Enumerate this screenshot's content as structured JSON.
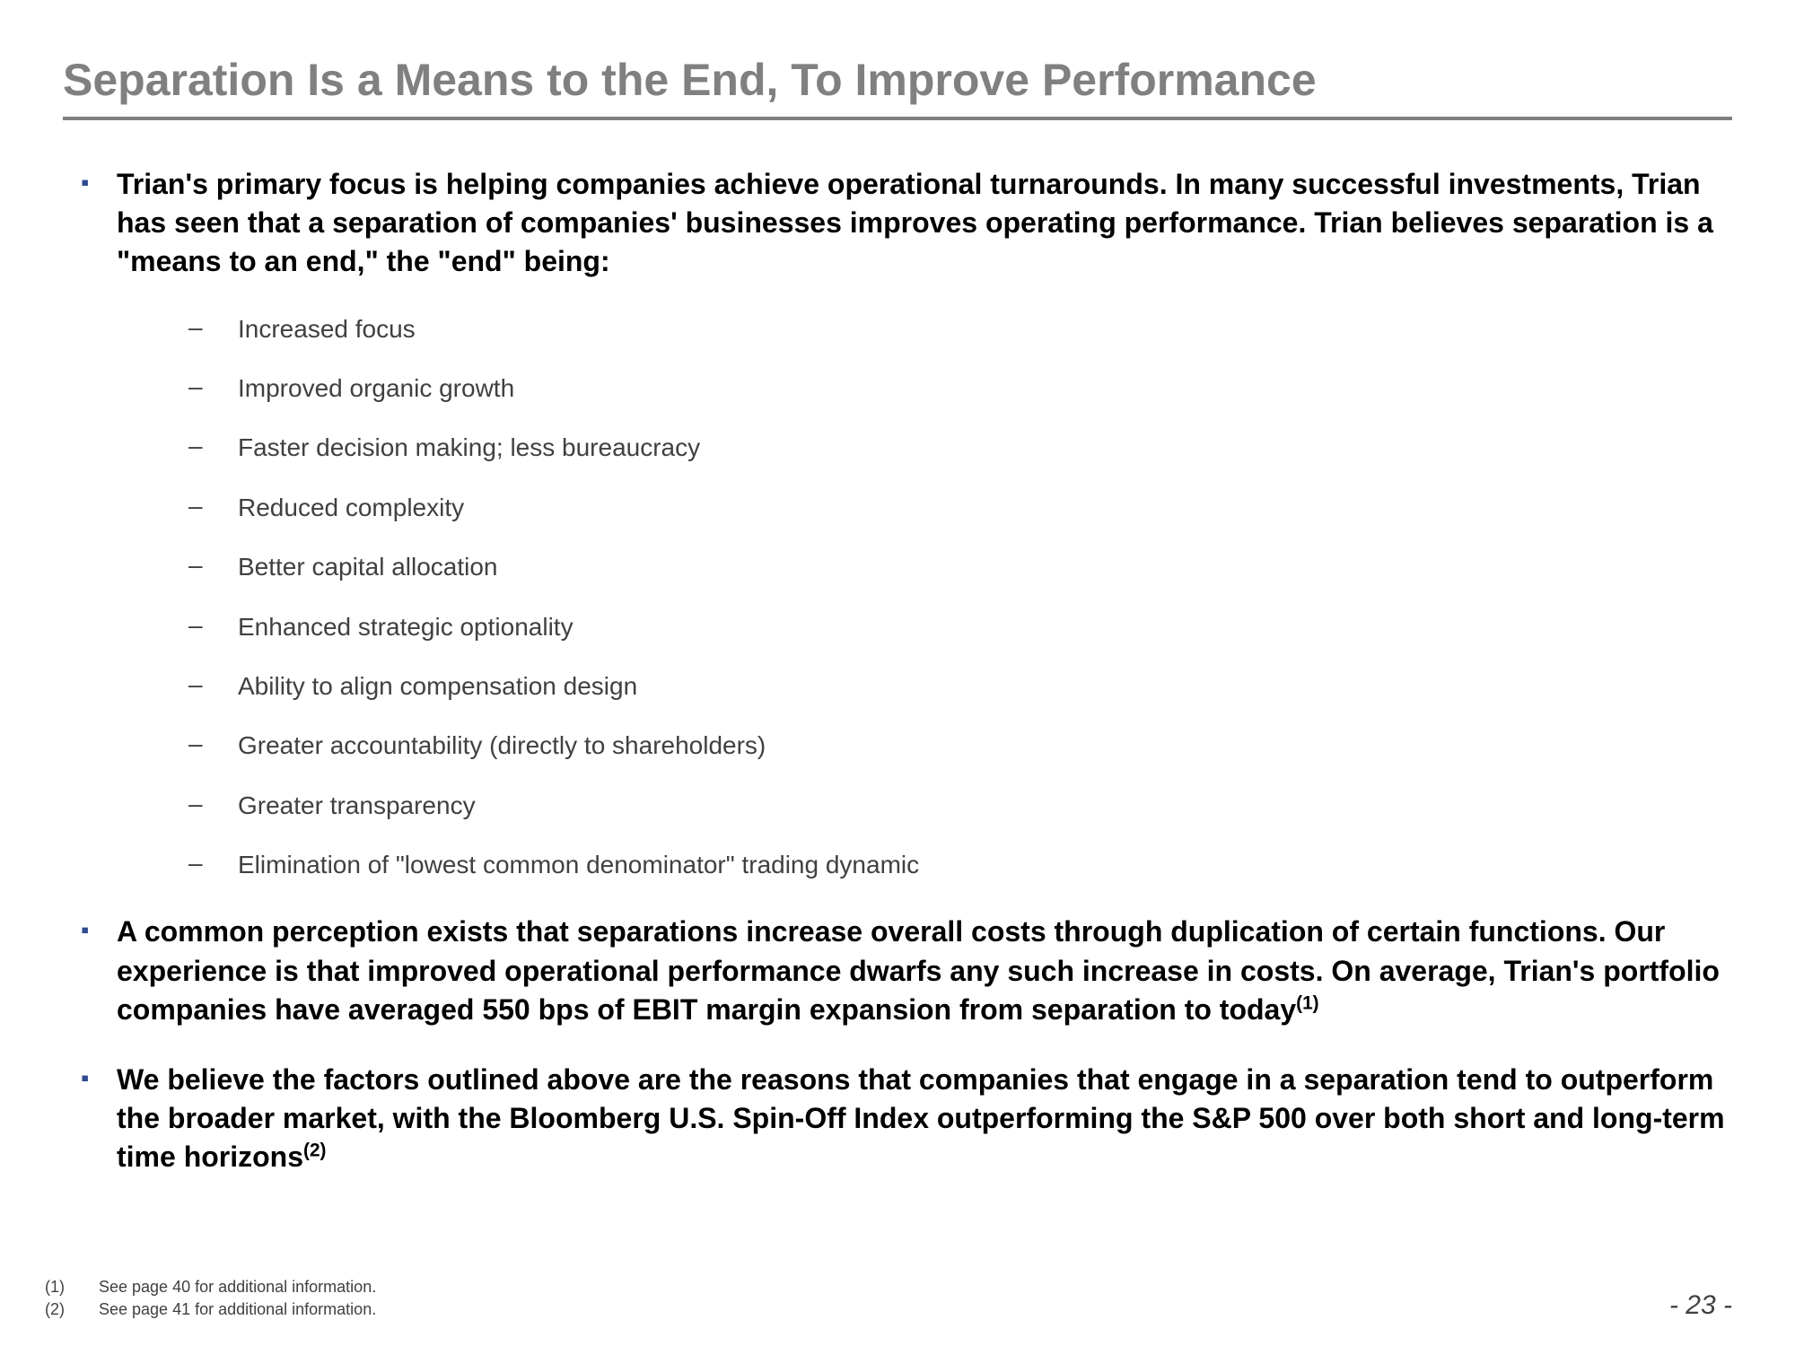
{
  "title": "Separation Is a Means to the End, To Improve Performance",
  "colors": {
    "title_gray": "#808080",
    "bullet_blue": "#2e4b8f",
    "body_black": "#000000",
    "sub_gray": "#404040",
    "background": "#ffffff"
  },
  "typography": {
    "title_fontsize": 50,
    "main_fontsize": 32,
    "sub_fontsize": 28,
    "footnote_fontsize": 18,
    "pagenum_fontsize": 30
  },
  "bullets": {
    "b1": {
      "text": "Trian's primary focus is helping companies achieve operational turnarounds.  In many successful investments, Trian has seen that a separation of companies' businesses improves operating performance.  Trian believes separation is a \"means to an end,\" the \"end\" being:",
      "subs": {
        "s0": "Increased focus",
        "s1": "Improved organic growth",
        "s2": "Faster decision making; less bureaucracy",
        "s3": "Reduced complexity",
        "s4": "Better capital allocation",
        "s5": "Enhanced strategic optionality",
        "s6": "Ability to align compensation design",
        "s7": "Greater accountability (directly to shareholders)",
        "s8": "Greater transparency",
        "s9": "Elimination of \"lowest common denominator\" trading dynamic"
      }
    },
    "b2": {
      "text_pre": "A common perception exists that separations increase overall costs through duplication of certain functions. Our experience is that improved operational performance dwarfs any such increase in costs. On average, Trian's portfolio companies have averaged 550 bps of EBIT margin expansion from separation to today",
      "sup": "(1)"
    },
    "b3": {
      "text_pre": "We believe the factors outlined above are the reasons that companies that engage in a separation tend to outperform the broader market, with the Bloomberg U.S. Spin-Off Index outperforming the S&P 500 over both short and long-term time horizons",
      "sup": "(2)"
    }
  },
  "footnotes": {
    "f1": {
      "num": "(1)",
      "text": "See page 40 for additional information."
    },
    "f2": {
      "num": "(2)",
      "text": "See page 41 for additional information."
    }
  },
  "page_number": "- 23 -"
}
